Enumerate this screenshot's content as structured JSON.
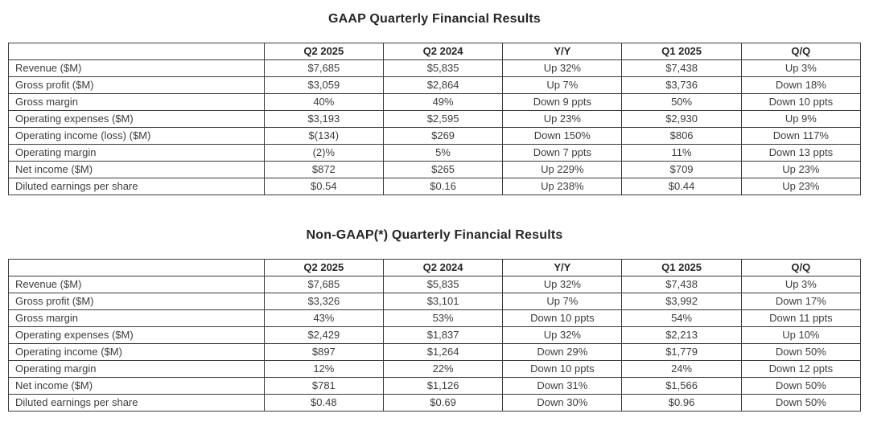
{
  "colors": {
    "background": "#ffffff",
    "table_border": "#3a3a3a",
    "body_text": "#3d3d3d",
    "heading_text": "#262626"
  },
  "tables": [
    {
      "title": "GAAP Quarterly Financial Results",
      "columns": [
        "",
        "Q2 2025",
        "Q2 2024",
        "Y/Y",
        "Q1 2025",
        "Q/Q"
      ],
      "rows": [
        {
          "label": "Revenue ($M)",
          "values": [
            "$7,685",
            "$5,835",
            "Up 32%",
            "$7,438",
            "Up 3%"
          ]
        },
        {
          "label": "Gross profit ($M)",
          "values": [
            "$3,059",
            "$2,864",
            "Up 7%",
            "$3,736",
            "Down 18%"
          ]
        },
        {
          "label": "Gross margin",
          "values": [
            "40%",
            "49%",
            "Down 9 ppts",
            "50%",
            "Down 10 ppts"
          ]
        },
        {
          "label": "Operating expenses ($M)",
          "values": [
            "$3,193",
            "$2,595",
            "Up 23%",
            "$2,930",
            "Up 9%"
          ]
        },
        {
          "label": "Operating income (loss) ($M)",
          "values": [
            "$(134)",
            "$269",
            "Down 150%",
            "$806",
            "Down 117%"
          ]
        },
        {
          "label": "Operating margin",
          "values": [
            "(2)%",
            "5%",
            "Down 7 ppts",
            "11%",
            "Down 13 ppts"
          ]
        },
        {
          "label": "Net income ($M)",
          "values": [
            "$872",
            "$265",
            "Up 229%",
            "$709",
            "Up 23%"
          ]
        },
        {
          "label": "Diluted earnings per share",
          "values": [
            "$0.54",
            "$0.16",
            "Up 238%",
            "$0.44",
            "Up 23%"
          ]
        }
      ]
    },
    {
      "title": "Non-GAAP(*) Quarterly Financial Results",
      "columns": [
        "",
        "Q2 2025",
        "Q2 2024",
        "Y/Y",
        "Q1 2025",
        "Q/Q"
      ],
      "rows": [
        {
          "label": "Revenue ($M)",
          "values": [
            "$7,685",
            "$5,835",
            "Up 32%",
            "$7,438",
            "Up 3%"
          ]
        },
        {
          "label": "Gross profit ($M)",
          "values": [
            "$3,326",
            "$3,101",
            "Up 7%",
            "$3,992",
            "Down 17%"
          ]
        },
        {
          "label": "Gross margin",
          "values": [
            "43%",
            "53%",
            "Down 10 ppts",
            "54%",
            "Down 11 ppts"
          ]
        },
        {
          "label": "Operating expenses ($M)",
          "values": [
            "$2,429",
            "$1,837",
            "Up 32%",
            "$2,213",
            "Up 10%"
          ]
        },
        {
          "label": "Operating income ($M)",
          "values": [
            "$897",
            "$1,264",
            "Down 29%",
            "$1,779",
            "Down 50%"
          ]
        },
        {
          "label": "Operating margin",
          "values": [
            "12%",
            "22%",
            "Down 10 ppts",
            "24%",
            "Down 12 ppts"
          ]
        },
        {
          "label": "Net income ($M)",
          "values": [
            "$781",
            "$1,126",
            "Down 31%",
            "$1,566",
            "Down 50%"
          ]
        },
        {
          "label": "Diluted earnings per share",
          "values": [
            "$0.48",
            "$0.69",
            "Down 30%",
            "$0.96",
            "Down 50%"
          ]
        }
      ]
    }
  ]
}
